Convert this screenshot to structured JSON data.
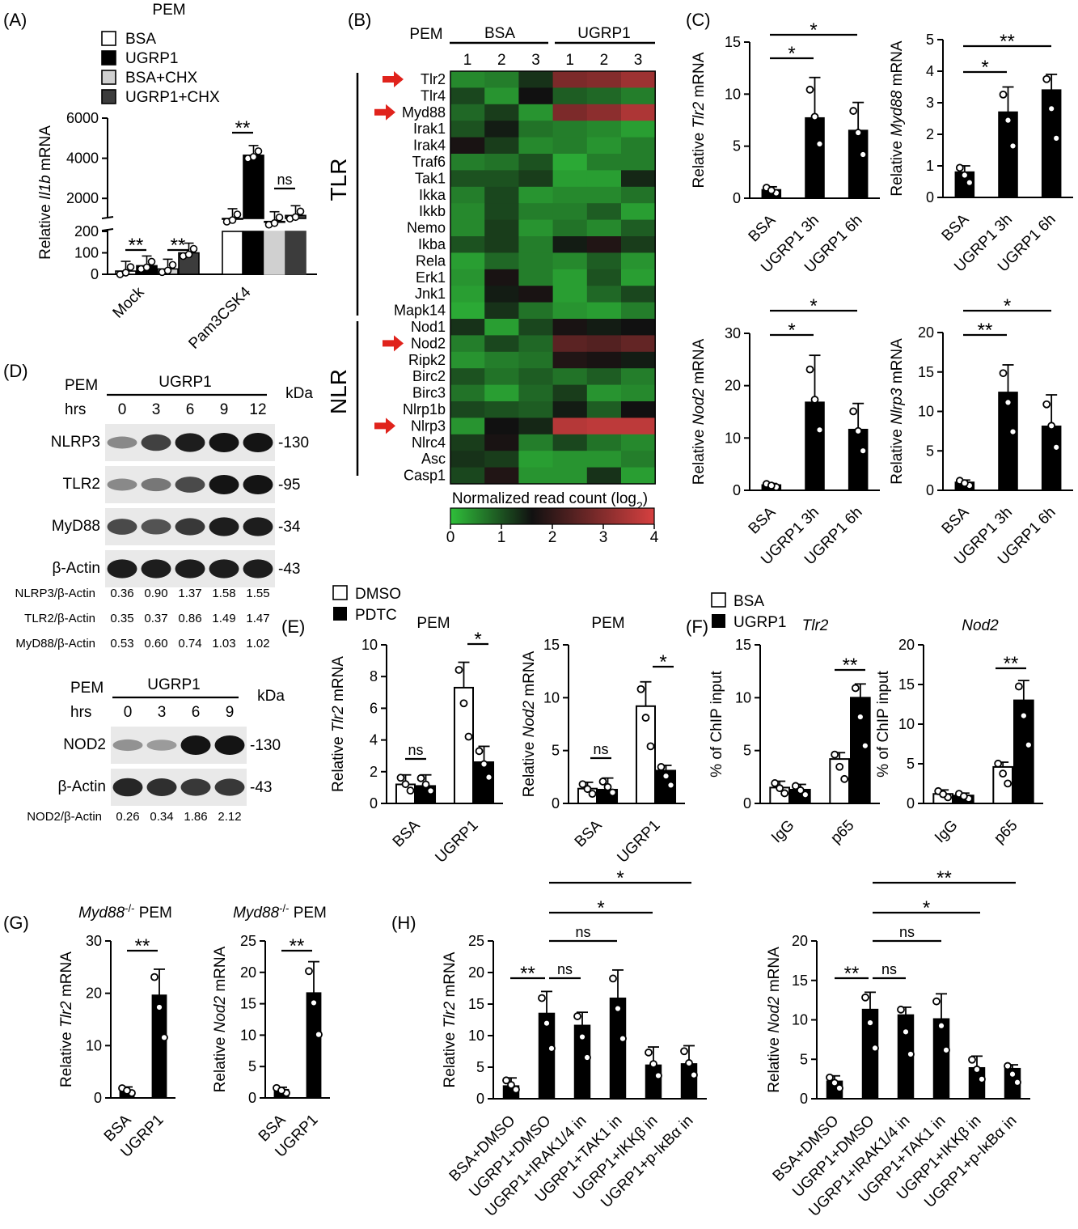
{
  "panel_letters": [
    "(A)",
    "(B)",
    "(C)",
    "(D)",
    "(E)",
    "(F)",
    "(G)",
    "(H)"
  ],
  "colors": {
    "bar_black": "#000000",
    "bar_white": "#ffffff",
    "bar_light": "#d0d0d0",
    "bar_dark": "#3c3c3c",
    "heat_low": "#2fbf3a",
    "heat_mid": "#111111",
    "heat_high": "#d64040",
    "arrow": "#e0231c"
  },
  "chart_data": [
    {
      "panel": "A",
      "type": "bar",
      "title": "PEM",
      "ylabel": "Relative Il1b mRNA",
      "categories": [
        "Mock",
        "Pam3CSK4"
      ],
      "series": [
        {
          "name": "BSA",
          "values": [
            15,
            1000
          ]
        },
        {
          "name": "UGRP1",
          "values": [
            40,
            4150
          ]
        },
        {
          "name": "BSA+CHX",
          "values": [
            25,
            850
          ]
        },
        {
          "name": "UGRP1+CHX",
          "values": [
            100,
            1150
          ]
        }
      ],
      "y_ticks_lower": [
        "0",
        "100",
        "200"
      ],
      "y_ticks_upper": [
        "2000",
        "4000",
        "6000"
      ],
      "significance": [
        "**",
        "**",
        "**",
        "ns"
      ]
    },
    {
      "panel": "B",
      "type": "heatmap",
      "title": "PEM",
      "groups": [
        "BSA",
        "UGRP1"
      ],
      "columns": [
        "1",
        "2",
        "3",
        "1",
        "2",
        "3"
      ],
      "row_groups": [
        "TLR",
        "NLR"
      ],
      "rows": [
        "Tlr2",
        "Tlr4",
        "Myd88",
        "Irak1",
        "Irak4",
        "Traf6",
        "Tak1",
        "Ikka",
        "Ikkb",
        "Nemo",
        "Ikba",
        "Rela",
        "Erk1",
        "Jnk1",
        "Mapk14",
        "Nod1",
        "Nod2",
        "Ripk2",
        "Birc2",
        "Birc3",
        "Nlrp1b",
        "Nlrp3",
        "Nlrc4",
        "Asc",
        "Casp1"
      ],
      "highlighted_rows": [
        "Tlr2",
        "Myd88",
        "Nod2",
        "Nlrp3"
      ],
      "colorbar_title": "Normalized read count (log2)",
      "colorbar_ticks": [
        "0",
        "1",
        "2",
        "3",
        "4"
      ],
      "values": [
        [
          0.5,
          0.6,
          1.3,
          2.9,
          3.0,
          3.3
        ],
        [
          1.1,
          0.4,
          1.6,
          0.9,
          0.8,
          0.6
        ],
        [
          0.8,
          1.2,
          0.4,
          2.9,
          3.1,
          3.5
        ],
        [
          1.0,
          1.5,
          0.7,
          0.6,
          0.5,
          0.3
        ],
        [
          1.7,
          1.2,
          0.5,
          0.6,
          0.4,
          0.6
        ],
        [
          0.6,
          0.7,
          1.0,
          0.2,
          0.6,
          0.6
        ],
        [
          1.0,
          1.0,
          1.2,
          0.3,
          0.3,
          1.4
        ],
        [
          0.6,
          1.1,
          0.4,
          0.5,
          0.5,
          0.7
        ],
        [
          0.5,
          1.1,
          0.6,
          0.6,
          0.9,
          0.3
        ],
        [
          0.5,
          1.2,
          0.4,
          0.7,
          0.5,
          0.9
        ],
        [
          1.0,
          1.2,
          0.6,
          1.5,
          1.8,
          1.2
        ],
        [
          0.3,
          0.8,
          0.6,
          0.5,
          0.9,
          0.4
        ],
        [
          0.4,
          1.7,
          0.6,
          0.3,
          1.0,
          0.3
        ],
        [
          0.3,
          1.5,
          1.7,
          0.3,
          0.8,
          1.1
        ],
        [
          0.2,
          1.3,
          0.7,
          0.4,
          0.3,
          0.6
        ],
        [
          1.3,
          0.3,
          1.1,
          1.7,
          1.5,
          1.6
        ],
        [
          0.6,
          1.1,
          0.8,
          2.5,
          2.4,
          2.6
        ],
        [
          0.4,
          0.6,
          0.7,
          1.8,
          1.7,
          1.5
        ],
        [
          1.0,
          0.7,
          0.9,
          0.7,
          0.9,
          0.6
        ],
        [
          0.7,
          0.3,
          0.8,
          1.2,
          0.4,
          0.5
        ],
        [
          1.1,
          1.0,
          0.9,
          1.5,
          0.9,
          1.6
        ],
        [
          0.4,
          1.6,
          1.4,
          3.6,
          3.7,
          3.7
        ],
        [
          1.2,
          1.7,
          0.6,
          1.1,
          0.7,
          0.5
        ],
        [
          1.3,
          1.2,
          0.3,
          0.4,
          0.4,
          0.6
        ],
        [
          1.1,
          1.8,
          0.4,
          0.4,
          1.3,
          0.3
        ]
      ]
    },
    {
      "panel": "C1",
      "type": "bar",
      "ylabel": "Relative Tlr2 mRNA",
      "categories": [
        "BSA",
        "UGRP1 3h",
        "UGRP1 6h"
      ],
      "values": [
        0.8,
        7.7,
        6.5
      ],
      "errors": [
        0.3,
        3.9,
        2.7
      ],
      "ylim": [
        0,
        15
      ],
      "y_ticks": [
        "0",
        "5",
        "10",
        "15"
      ],
      "significance": [
        "*",
        "*"
      ]
    },
    {
      "panel": "C2",
      "type": "bar",
      "ylabel": "Relative Myd88 mRNA",
      "categories": [
        "BSA",
        "UGRP1 3h",
        "UGRP1 6h"
      ],
      "values": [
        0.8,
        2.7,
        3.4
      ],
      "errors": [
        0.2,
        0.8,
        0.5
      ],
      "ylim": [
        0,
        5
      ],
      "y_ticks": [
        "0",
        "1",
        "2",
        "3",
        "4",
        "5"
      ],
      "significance": [
        "*",
        "**"
      ]
    },
    {
      "panel": "C3",
      "type": "bar",
      "ylabel": "Relative Nod2 mRNA",
      "categories": [
        "BSA",
        "UGRP1 3h",
        "UGRP1 6h"
      ],
      "values": [
        1,
        16.8,
        11.6
      ],
      "errors": [
        0.3,
        9,
        5
      ],
      "ylim": [
        0,
        30
      ],
      "y_ticks": [
        "0",
        "10",
        "20",
        "30"
      ],
      "significance": [
        "*",
        "*"
      ]
    },
    {
      "panel": "C4",
      "type": "bar",
      "ylabel": "Relative Nlrp3 mRNA",
      "categories": [
        "BSA",
        "UGRP1 3h",
        "UGRP1 6h"
      ],
      "values": [
        1,
        12.4,
        8.1
      ],
      "errors": [
        0.3,
        3.5,
        4
      ],
      "ylim": [
        0,
        20
      ],
      "y_ticks": [
        "0",
        "5",
        "10",
        "15",
        "20"
      ],
      "significance": [
        "**",
        "*"
      ]
    },
    {
      "panel": "E1",
      "type": "bar",
      "title": "PEM",
      "ylabel": "Relative Tlr2 mRNA",
      "categories": [
        "BSA",
        "UGRP1"
      ],
      "series": [
        {
          "name": "DMSO",
          "values": [
            1.2,
            7.3
          ]
        },
        {
          "name": "PDTC",
          "values": [
            1.1,
            2.6
          ]
        }
      ],
      "errors": [
        [
          0.6,
          1.6
        ],
        [
          0.7,
          1
        ]
      ],
      "ylim": [
        0,
        10
      ],
      "y_ticks": [
        "0",
        "2",
        "4",
        "6",
        "8",
        "10"
      ],
      "significance": [
        "ns",
        "*"
      ]
    },
    {
      "panel": "E2",
      "type": "bar",
      "title": "PEM",
      "ylabel": "Relative Nod2 mRNA",
      "categories": [
        "BSA",
        "UGRP1"
      ],
      "series": [
        {
          "name": "DMSO",
          "values": [
            1.4,
            9.2
          ]
        },
        {
          "name": "PDTC",
          "values": [
            1.3,
            3.1
          ]
        }
      ],
      "errors": [
        [
          0.6,
          2.3
        ],
        [
          1.1,
          0.5
        ]
      ],
      "ylim": [
        0,
        15
      ],
      "y_ticks": [
        "0",
        "5",
        "10",
        "15"
      ],
      "significance": [
        "ns",
        "*"
      ]
    },
    {
      "panel": "F1",
      "type": "bar",
      "title": "Tlr2",
      "ylabel": "% of ChIP input",
      "categories": [
        "IgG",
        "p65"
      ],
      "series": [
        {
          "name": "BSA",
          "values": [
            1.5,
            4.2
          ]
        },
        {
          "name": "UGRP1",
          "values": [
            1.3,
            10
          ]
        }
      ],
      "errors": [
        [
          0.6,
          0.6
        ],
        [
          0.5,
          1.3
        ]
      ],
      "ylim": [
        0,
        15
      ],
      "y_ticks": [
        "0",
        "5",
        "10",
        "15"
      ],
      "significance": [
        "**"
      ]
    },
    {
      "panel": "F2",
      "type": "bar",
      "title": "Nod2",
      "ylabel": "% of ChIP input",
      "categories": [
        "IgG",
        "p65"
      ],
      "series": [
        {
          "name": "BSA",
          "values": [
            1.2,
            4.6
          ]
        },
        {
          "name": "UGRP1",
          "values": [
            1,
            13
          ]
        }
      ],
      "errors": [
        [
          0.5,
          0.6
        ],
        [
          0.3,
          2.5
        ]
      ],
      "ylim": [
        0,
        20
      ],
      "y_ticks": [
        "0",
        "5",
        "10",
        "15",
        "20"
      ],
      "significance": [
        "**"
      ]
    },
    {
      "panel": "G1",
      "type": "bar",
      "title": "Myd88-/- PEM",
      "ylabel": "Relative Tlr2 mRNA",
      "categories": [
        "BSA",
        "UGRP1"
      ],
      "values": [
        1.3,
        19.6
      ],
      "errors": [
        0.8,
        5
      ],
      "ylim": [
        0,
        30
      ],
      "y_ticks": [
        "0",
        "10",
        "20",
        "30"
      ],
      "significance": [
        "**"
      ]
    },
    {
      "panel": "G2",
      "type": "bar",
      "title": "Myd88-/- PEM",
      "ylabel": "Relative Nod2 mRNA",
      "categories": [
        "BSA",
        "UGRP1"
      ],
      "values": [
        1.3,
        16.7
      ],
      "errors": [
        0.4,
        5
      ],
      "ylim": [
        0,
        25
      ],
      "y_ticks": [
        "0",
        "5",
        "10",
        "15",
        "20",
        "25"
      ],
      "significance": [
        "**"
      ]
    },
    {
      "panel": "H1",
      "type": "bar",
      "ylabel": "Relative Tlr2 mRNA",
      "categories": [
        "BSA+DMSO",
        "UGRP1+DMSO",
        "UGRP1+IRAK1/4 in",
        "UGRP1+TAK1 in",
        "UGRP1+IKKβ in",
        "UGRP1+p-IκBα in"
      ],
      "values": [
        2,
        13.5,
        11.6,
        15.9,
        5.3,
        5.5
      ],
      "errors": [
        1.3,
        3.5,
        2.1,
        4.5,
        2.9,
        2.9
      ],
      "ylim": [
        0,
        25
      ],
      "y_ticks": [
        "0",
        "5",
        "10",
        "15",
        "20",
        "25"
      ],
      "significance": [
        "**",
        "ns",
        "ns",
        "*",
        "*"
      ]
    },
    {
      "panel": "H2",
      "type": "bar",
      "ylabel": "Relative Nod2 mRNA",
      "categories": [
        "BSA+DMSO",
        "UGRP1+DMSO",
        "UGRP1+IRAK1/4 in",
        "UGRP1+TAK1 in",
        "UGRP1+IKKβ in",
        "UGRP1+p-IκBα in"
      ],
      "values": [
        2.2,
        11.3,
        10.6,
        10.1,
        3.9,
        3.8
      ],
      "errors": [
        0.7,
        2.2,
        1,
        3.2,
        1.5,
        0.5
      ],
      "ylim": [
        0,
        20
      ],
      "y_ticks": [
        "0",
        "5",
        "10",
        "15",
        "20"
      ],
      "significance": [
        "**",
        "ns",
        "ns",
        "*",
        "**"
      ]
    }
  ],
  "western_blots": [
    {
      "title": "PEM",
      "treatment": "UGRP1",
      "time_label": "hrs",
      "kda_label": "kDa",
      "lanes": [
        "0",
        "3",
        "6",
        "9",
        "12"
      ],
      "bands": [
        {
          "name": "NLRP3",
          "kda": "130",
          "intensities": [
            0.35,
            0.75,
            0.95,
            1,
            1
          ]
        },
        {
          "name": "TLR2",
          "kda": "95",
          "intensities": [
            0.35,
            0.45,
            0.7,
            1,
            1
          ]
        },
        {
          "name": "MyD88",
          "kda": "34",
          "intensities": [
            0.7,
            0.65,
            0.8,
            0.95,
            0.95
          ]
        },
        {
          "name": "β-Actin",
          "kda": "43",
          "intensities": [
            0.95,
            0.95,
            0.95,
            0.95,
            0.95
          ]
        }
      ],
      "ratios": [
        {
          "label": "NLRP3/β-Actin",
          "values": [
            "0.36",
            "0.90",
            "1.37",
            "1.58",
            "1.55"
          ]
        },
        {
          "label": "TLR2/β-Actin",
          "values": [
            "0.35",
            "0.37",
            "0.86",
            "1.49",
            "1.47"
          ]
        },
        {
          "label": "MyD88/β-Actin",
          "values": [
            "0.53",
            "0.60",
            "0.74",
            "1.03",
            "1.02"
          ]
        }
      ]
    },
    {
      "title": "PEM",
      "treatment": "UGRP1",
      "time_label": "hrs",
      "kda_label": "kDa",
      "lanes": [
        "0",
        "3",
        "6",
        "9"
      ],
      "bands": [
        {
          "name": "NOD2",
          "kda": "130",
          "intensities": [
            0.3,
            0.25,
            1,
            1
          ]
        },
        {
          "name": "β-Actin",
          "kda": "43",
          "intensities": [
            0.9,
            0.85,
            0.8,
            0.8
          ]
        }
      ],
      "ratios": [
        {
          "label": "NOD2/β-Actin",
          "values": [
            "0.26",
            "0.34",
            "1.86",
            "2.12"
          ]
        }
      ]
    }
  ]
}
